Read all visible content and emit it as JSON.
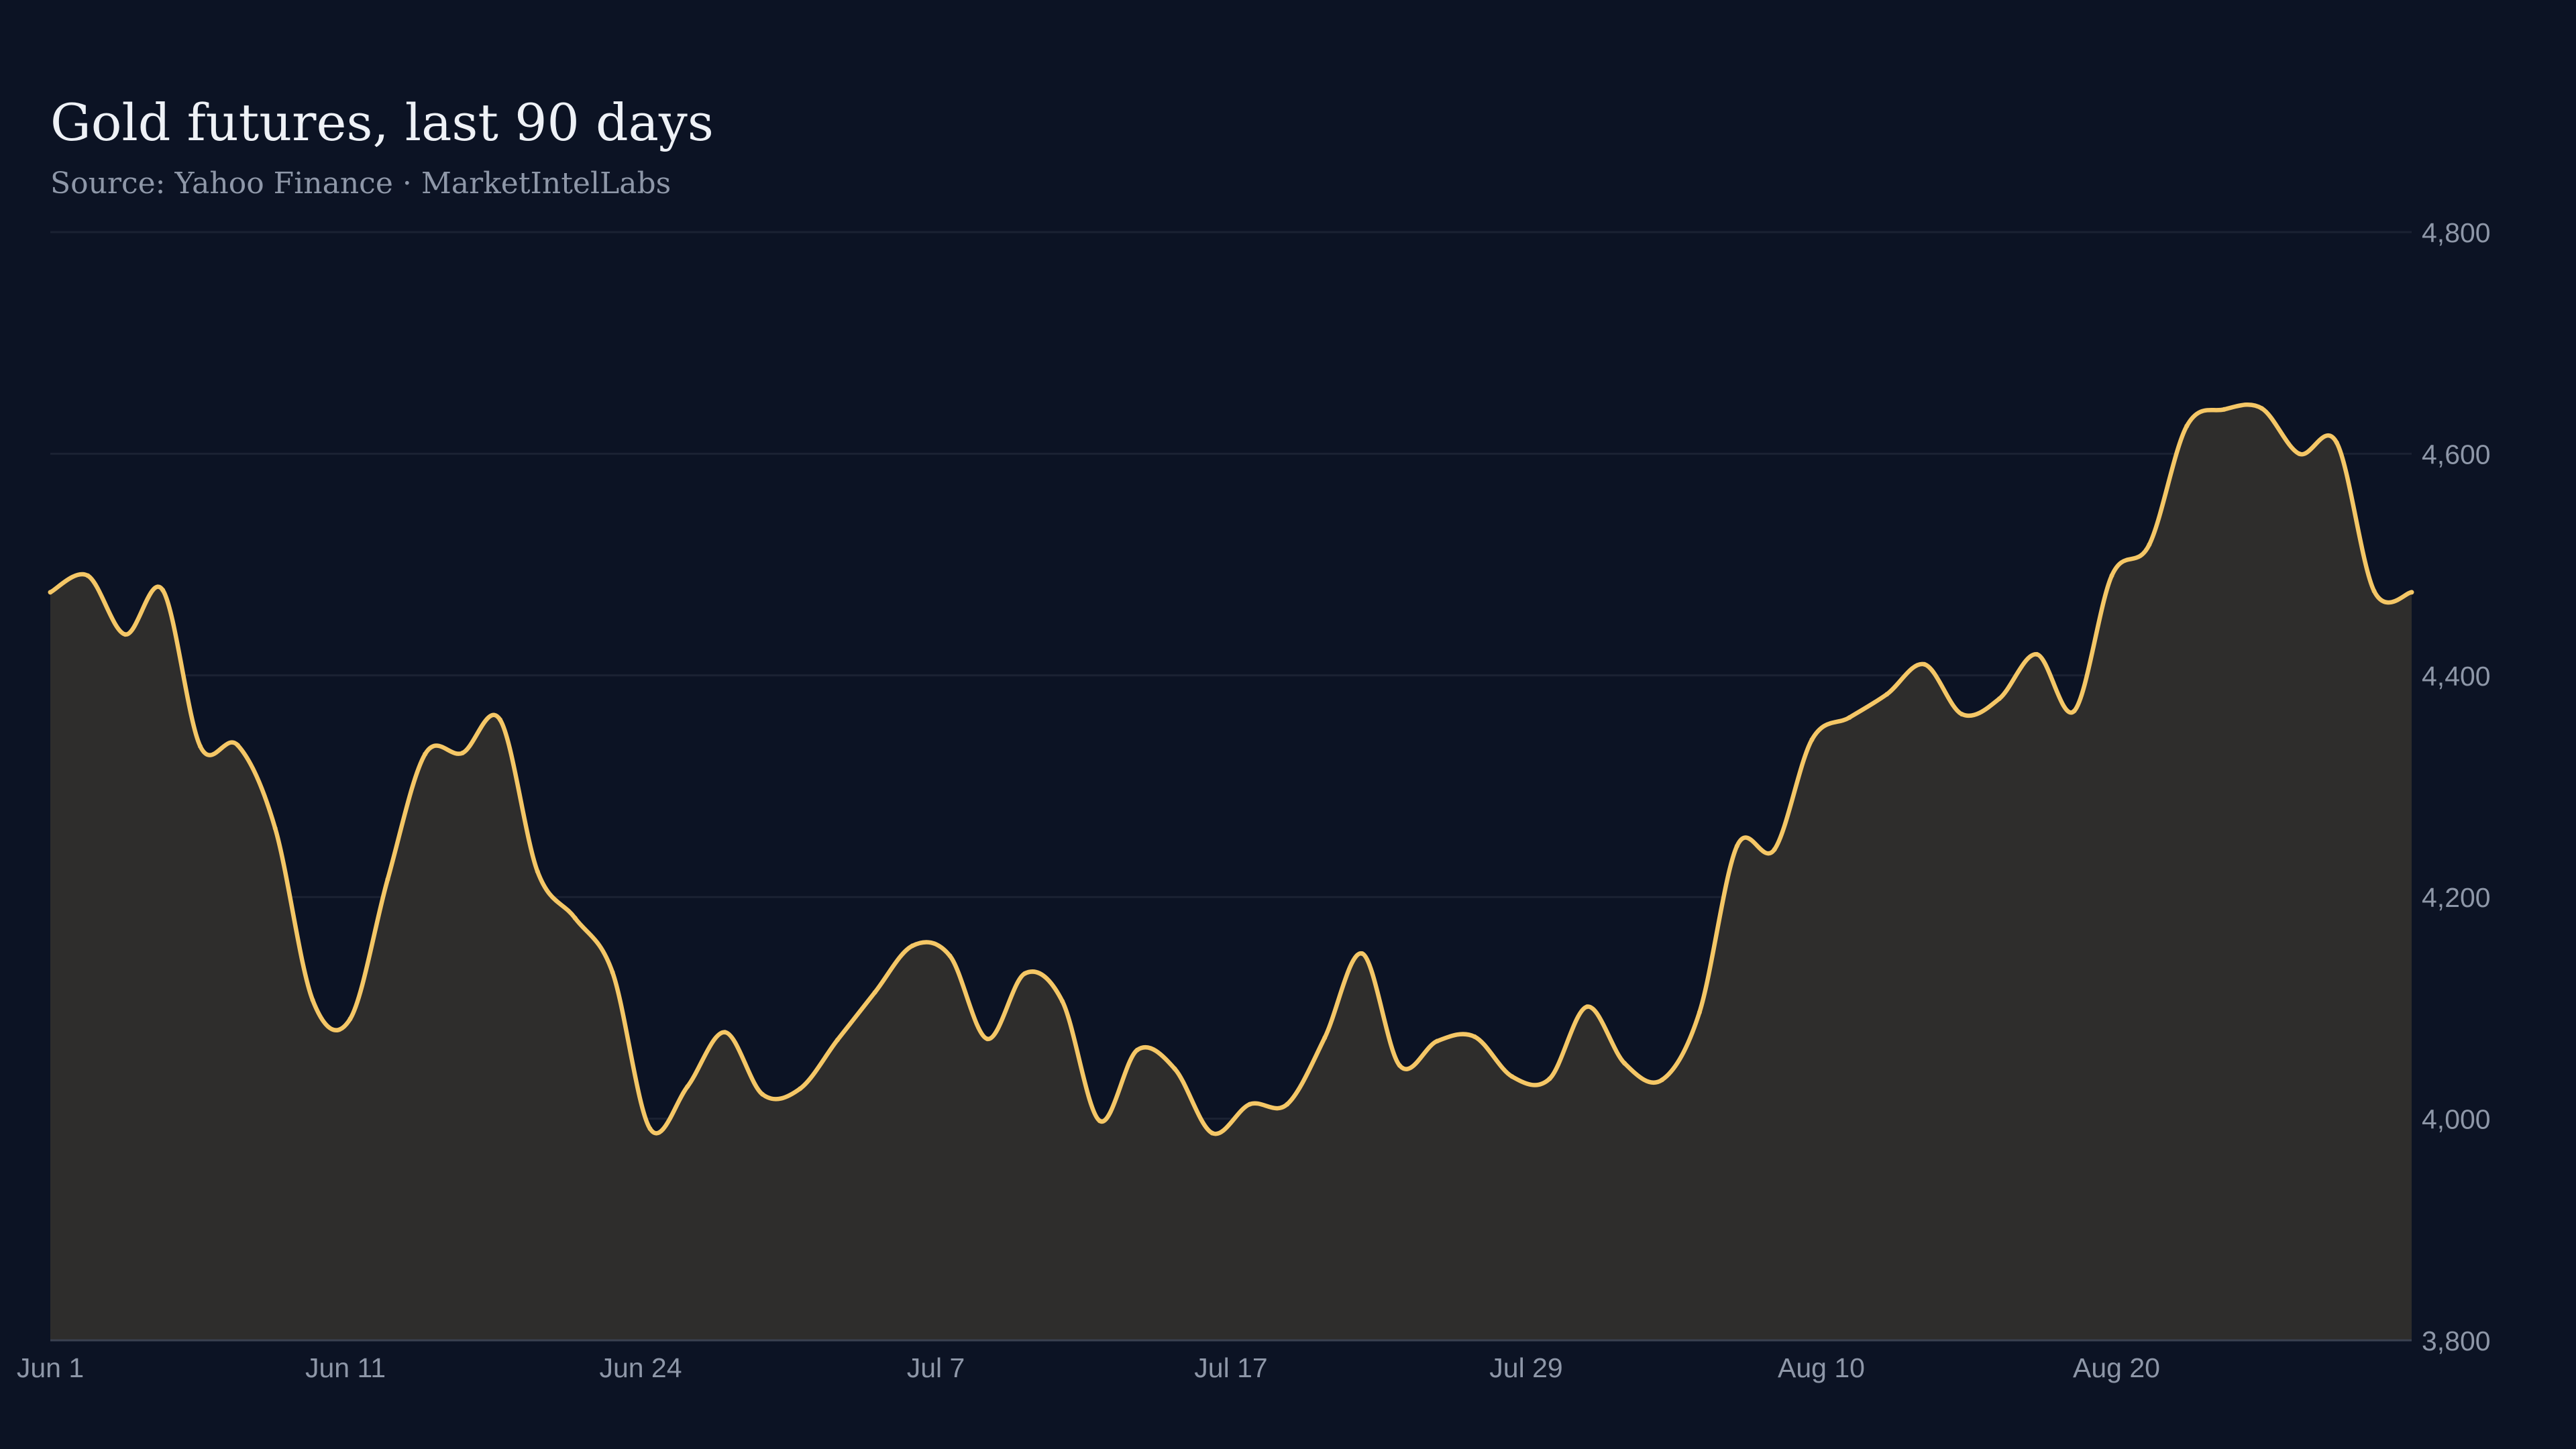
{
  "header": {
    "title": "Gold futures, last 90 days",
    "subtitle": "Source: Yahoo Finance · MarketIntelLabs"
  },
  "colors": {
    "background": "#0c1324",
    "line": "#f5c766",
    "area": "#2e2d2c",
    "grid": "#1b2233",
    "axis_text": "#8e97a8",
    "title_text": "#eef1f6"
  },
  "chart_data": {
    "type": "area",
    "title": "Gold futures, last 90 days",
    "subtitle": "Source: Yahoo Finance · MarketIntelLabs",
    "xlabel": "",
    "ylabel": "",
    "ylim": [
      3800,
      4800
    ],
    "y_ticks": [
      3800,
      4000,
      4200,
      4400,
      4600,
      4800
    ],
    "y_tick_labels": [
      "3,800",
      "4,000",
      "4,200",
      "4,400",
      "4,600",
      "4,800"
    ],
    "y_axis_position": "right",
    "grid": true,
    "x_tick_labels": [
      "Jun  1",
      "Jun 11",
      "Jun 24",
      "Jul  7",
      "Jul 17",
      "Jul 29",
      "Aug 10",
      "Aug 20"
    ],
    "series": [
      {
        "values": [
          4475,
          4490,
          4437,
          4477,
          4336,
          4337,
          4262,
          4107,
          4090,
          4216,
          4329,
          4330,
          4360,
          4223,
          4181,
          4132,
          3991,
          4029,
          4078,
          4022,
          4027,
          4071,
          4114,
          4156,
          4147,
          4072,
          4131,
          4106,
          3998,
          4062,
          4045,
          3987,
          4013,
          4013,
          4073,
          4149,
          4048,
          4070,
          4074,
          4038,
          4036,
          4101,
          4050,
          4035,
          4096,
          4246,
          4243,
          4342,
          4362,
          4383,
          4410,
          4365,
          4379,
          4419,
          4368,
          4490,
          4518,
          4625,
          4640,
          4641,
          4600,
          4610,
          4476,
          4475
        ]
      }
    ]
  }
}
